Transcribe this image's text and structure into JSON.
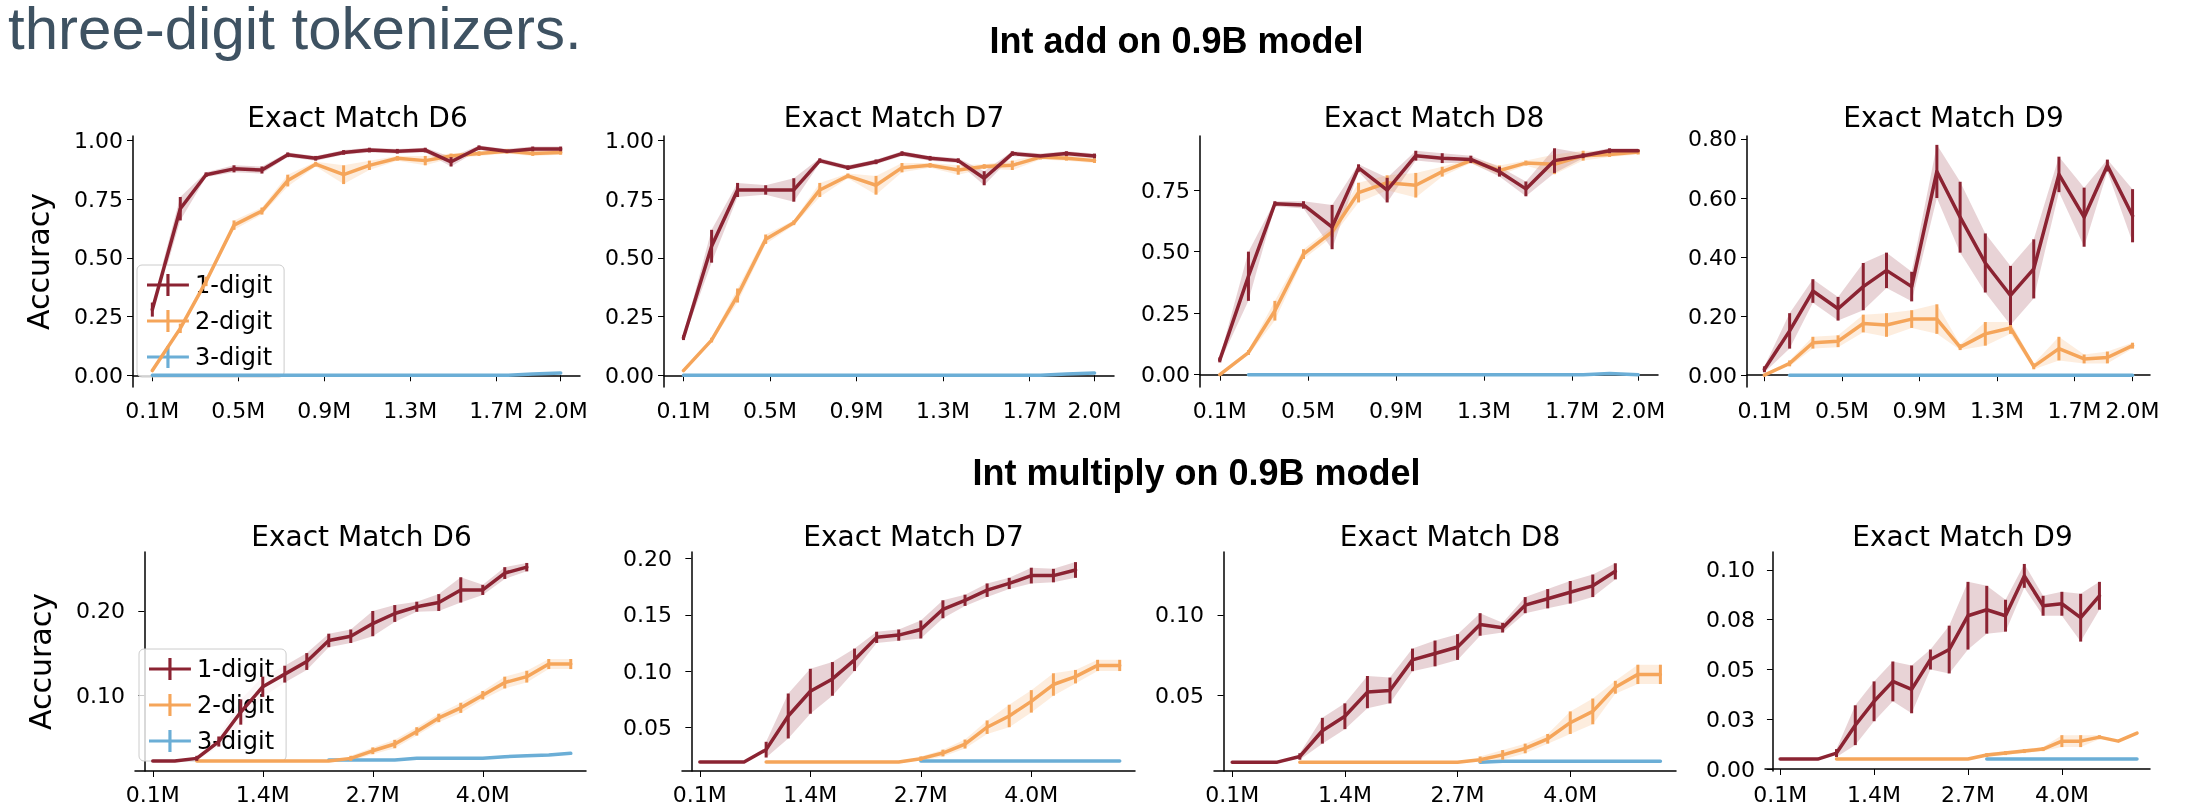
{
  "chart_data": [
    {
      "type": "line",
      "title": "Exact Match D6",
      "ylabel": "Accuracy",
      "annotations": [
        "three-digit tokenizers.",
        "Int add on 0.9B model"
      ],
      "legend": "bottom left",
      "x": [
        0.1,
        0.23,
        0.35,
        0.48,
        0.61,
        0.73,
        0.86,
        0.99,
        1.11,
        1.24,
        1.37,
        1.49,
        1.62,
        1.75,
        1.87,
        2.0
      ],
      "xlim": [
        0.01,
        2.09
      ],
      "xticks": [
        {
          "value": 0.1,
          "label": "0.1M"
        },
        {
          "value": 0.5,
          "label": "0.5M"
        },
        {
          "value": 0.9,
          "label": "0.9M"
        },
        {
          "value": 1.3,
          "label": "1.3M"
        },
        {
          "value": 1.7,
          "label": "1.7M"
        },
        {
          "value": 2.0,
          "label": "2.0M"
        }
      ],
      "ylim": [
        -0.05,
        1.02
      ],
      "yticks": [
        {
          "value": 0,
          "label": "0.00"
        },
        {
          "value": 0.25,
          "label": "0.25"
        },
        {
          "value": 0.5,
          "label": "0.50"
        },
        {
          "value": 0.75,
          "label": "0.75"
        },
        {
          "value": 1,
          "label": "1.00"
        }
      ],
      "series": [
        {
          "name": "1-digit",
          "color": "#8b2332",
          "values": [
            0.28,
            0.71,
            0.855,
            0.88,
            0.875,
            0.94,
            0.925,
            0.95,
            0.96,
            0.955,
            0.96,
            0.91,
            0.97,
            0.955,
            0.965,
            0.965
          ],
          "errors": [
            0.03,
            0.05,
            0.01,
            0.015,
            0.015,
            0.01,
            0.01,
            0.01,
            0.01,
            0.01,
            0.01,
            0.02,
            0.01,
            null,
            0.01,
            0.01
          ],
          "lower": [
            0.25,
            0.66,
            0.845,
            0.865,
            0.86,
            0.93,
            0.915,
            0.94,
            0.95,
            0.945,
            0.95,
            0.89,
            0.96,
            0.945,
            0.955,
            0.955
          ],
          "upper": [
            0.31,
            0.76,
            0.865,
            0.895,
            0.89,
            0.95,
            0.935,
            0.96,
            0.97,
            0.965,
            0.97,
            0.93,
            0.98,
            0.965,
            0.975,
            0.975
          ]
        },
        {
          "name": "2-digit",
          "color": "#f5a55a",
          "values": [
            0.02,
            0.2,
            0.4,
            0.64,
            0.7,
            0.83,
            0.9,
            0.855,
            0.895,
            0.925,
            0.915,
            0.935,
            0.945,
            0.955,
            0.945,
            0.95
          ],
          "errors": [
            null,
            0.02,
            0.02,
            0.02,
            0.015,
            0.025,
            0.01,
            0.04,
            0.02,
            0.01,
            0.02,
            0.01,
            0.01,
            0.01,
            0.01,
            0.01
          ],
          "lower": [
            null,
            null,
            null,
            0.62,
            0.685,
            0.805,
            0.89,
            0.815,
            0.875,
            0.915,
            0.895,
            0.925,
            0.935,
            0.945,
            0.935,
            0.94
          ],
          "upper": [
            null,
            null,
            null,
            0.66,
            0.715,
            0.855,
            0.91,
            0.895,
            0.915,
            0.935,
            0.935,
            0.945,
            0.955,
            0.965,
            0.955,
            0.96
          ]
        },
        {
          "name": "3-digit",
          "color": "#6baed6",
          "values": [
            0,
            0,
            0,
            0,
            0,
            0,
            0,
            0,
            0,
            0,
            0,
            0,
            0,
            0,
            0.005,
            0.01
          ]
        }
      ]
    },
    {
      "type": "line",
      "title": "Exact Match D7",
      "x": [
        0.1,
        0.23,
        0.35,
        0.48,
        0.61,
        0.73,
        0.86,
        0.99,
        1.11,
        1.24,
        1.37,
        1.49,
        1.62,
        1.75,
        1.87,
        2.0
      ],
      "xlim": [
        0.01,
        2.09
      ],
      "xticks": [
        {
          "value": 0.1,
          "label": "0.1M"
        },
        {
          "value": 0.5,
          "label": "0.5M"
        },
        {
          "value": 0.9,
          "label": "0.9M"
        },
        {
          "value": 1.3,
          "label": "1.3M"
        },
        {
          "value": 1.7,
          "label": "1.7M"
        },
        {
          "value": 2.0,
          "label": "2.0M"
        }
      ],
      "ylim": [
        -0.05,
        1.02
      ],
      "yticks": [
        {
          "value": 0,
          "label": "0.00"
        },
        {
          "value": 0.25,
          "label": "0.25"
        },
        {
          "value": 0.5,
          "label": "0.50"
        },
        {
          "value": 0.75,
          "label": "0.75"
        },
        {
          "value": 1,
          "label": "1.00"
        }
      ],
      "series": [
        {
          "color": "#8b2332",
          "values": [
            0.16,
            0.55,
            0.79,
            0.79,
            0.79,
            0.915,
            0.885,
            0.91,
            0.945,
            0.925,
            0.915,
            0.84,
            0.945,
            0.935,
            0.945,
            0.935
          ],
          "errors": [
            0.01,
            0.07,
            0.03,
            0.02,
            0.05,
            0.01,
            0.01,
            0.01,
            0.01,
            0.01,
            0.01,
            0.03,
            0.01,
            null,
            0.01,
            0.01
          ],
          "lower": [
            0.15,
            0.48,
            0.76,
            0.77,
            0.74,
            0.905,
            0.875,
            0.9,
            0.935,
            0.915,
            0.905,
            0.81,
            0.935,
            0.925,
            0.935,
            0.925
          ],
          "upper": [
            0.17,
            0.62,
            0.82,
            0.81,
            0.84,
            0.925,
            0.895,
            0.92,
            0.955,
            0.935,
            0.925,
            0.87,
            0.955,
            0.945,
            0.955,
            0.945
          ]
        },
        {
          "color": "#f5a55a",
          "values": [
            0.02,
            0.15,
            0.34,
            0.58,
            0.65,
            0.79,
            0.85,
            0.81,
            0.885,
            0.895,
            0.875,
            0.89,
            0.895,
            0.93,
            0.925,
            0.915
          ],
          "errors": [
            null,
            0.01,
            0.03,
            0.02,
            0.01,
            0.03,
            0.01,
            0.04,
            0.02,
            0.01,
            0.02,
            0.01,
            0.02,
            0.01,
            0.01,
            0.01
          ],
          "lower": [
            null,
            0.14,
            0.31,
            0.56,
            0.64,
            0.76,
            0.84,
            0.77,
            0.865,
            0.885,
            0.855,
            0.88,
            0.875,
            0.92,
            0.915,
            0.905
          ],
          "upper": [
            null,
            0.16,
            0.37,
            0.6,
            0.66,
            0.82,
            0.86,
            0.85,
            0.905,
            0.905,
            0.895,
            0.9,
            0.915,
            0.94,
            0.935,
            0.925
          ]
        },
        {
          "color": "#6baed6",
          "values": [
            0,
            0,
            0,
            0,
            0,
            0,
            0,
            0,
            0,
            0,
            0,
            0,
            0,
            0,
            0.005,
            0.01
          ]
        }
      ]
    },
    {
      "type": "line",
      "title": "Exact Match D8",
      "x": [
        0.1,
        0.23,
        0.35,
        0.48,
        0.61,
        0.73,
        0.86,
        0.99,
        1.11,
        1.24,
        1.37,
        1.49,
        1.62,
        1.75,
        1.87,
        2.0
      ],
      "xlim": [
        0.01,
        2.09
      ],
      "xticks": [
        {
          "value": 0.1,
          "label": "0.1M"
        },
        {
          "value": 0.5,
          "label": "0.5M"
        },
        {
          "value": 0.9,
          "label": "0.9M"
        },
        {
          "value": 1.3,
          "label": "1.3M"
        },
        {
          "value": 1.7,
          "label": "1.7M"
        },
        {
          "value": 2.0,
          "label": "2.0M"
        }
      ],
      "ylim": [
        -0.05,
        0.97
      ],
      "yticks": [
        {
          "value": 0,
          "label": "0.00"
        },
        {
          "value": 0.25,
          "label": "0.25"
        },
        {
          "value": 0.5,
          "label": "0.50"
        },
        {
          "value": 0.75,
          "label": "0.75"
        }
      ],
      "series": [
        {
          "color": "#8b2332",
          "values": [
            0.06,
            0.4,
            0.695,
            0.69,
            0.6,
            0.84,
            0.75,
            0.89,
            0.88,
            0.875,
            0.825,
            0.755,
            0.87,
            0.89,
            0.91,
            0.91
          ],
          "errors": [
            0.01,
            0.1,
            0.01,
            0.015,
            0.09,
            0.015,
            0.05,
            0.02,
            0.02,
            0.015,
            0.02,
            0.03,
            0.05,
            0.01,
            0.01,
            null
          ],
          "lower": [
            0.05,
            0.3,
            0.685,
            0.675,
            0.51,
            0.825,
            0.7,
            0.87,
            0.86,
            0.86,
            0.805,
            0.725,
            0.82,
            0.88,
            0.9,
            0.9
          ],
          "upper": [
            0.07,
            0.5,
            0.705,
            0.705,
            0.69,
            0.855,
            0.8,
            0.91,
            0.9,
            0.89,
            0.845,
            0.785,
            0.92,
            0.9,
            0.92,
            0.92
          ]
        },
        {
          "color": "#f5a55a",
          "values": [
            0,
            0.09,
            0.26,
            0.49,
            0.58,
            0.74,
            0.78,
            0.77,
            0.825,
            0.87,
            0.83,
            0.86,
            0.855,
            0.89,
            0.895,
            0.905
          ],
          "errors": [
            null,
            0.01,
            0.04,
            0.02,
            0.02,
            0.04,
            0.03,
            0.05,
            0.02,
            0.01,
            0.02,
            0.01,
            0.04,
            0.02,
            0.01,
            0.01
          ],
          "lower": [
            null,
            0.08,
            0.22,
            0.47,
            0.56,
            0.7,
            0.75,
            0.72,
            0.805,
            0.86,
            0.81,
            0.85,
            0.815,
            0.87,
            0.885,
            0.895
          ],
          "upper": [
            null,
            0.1,
            0.3,
            0.51,
            0.6,
            0.78,
            0.81,
            0.82,
            0.845,
            0.88,
            0.85,
            0.87,
            0.895,
            0.91,
            0.905,
            0.915
          ]
        },
        {
          "color": "#6baed6",
          "values": [
            null,
            0,
            0,
            0,
            0,
            0,
            0,
            0,
            0,
            0,
            0,
            0,
            0,
            0,
            0.005,
            0
          ]
        }
      ]
    },
    {
      "type": "line",
      "title": "Exact Match D9",
      "x": [
        0.1,
        0.23,
        0.35,
        0.48,
        0.61,
        0.73,
        0.86,
        0.99,
        1.11,
        1.24,
        1.37,
        1.49,
        1.62,
        1.75,
        1.87,
        2.0
      ],
      "xlim": [
        0.01,
        2.09
      ],
      "xticks": [
        {
          "value": 0.1,
          "label": "0.1M"
        },
        {
          "value": 0.5,
          "label": "0.5M"
        },
        {
          "value": 0.9,
          "label": "0.9M"
        },
        {
          "value": 1.3,
          "label": "1.3M"
        },
        {
          "value": 1.7,
          "label": "1.7M"
        },
        {
          "value": 2.0,
          "label": "2.0M"
        }
      ],
      "ylim": [
        -0.04,
        0.81
      ],
      "yticks": [
        {
          "value": 0,
          "label": "0.00"
        },
        {
          "value": 0.2,
          "label": "0.20"
        },
        {
          "value": 0.4,
          "label": "0.40"
        },
        {
          "value": 0.6,
          "label": "0.60"
        },
        {
          "value": 0.8,
          "label": "0.80"
        }
      ],
      "series": [
        {
          "color": "#8b2332",
          "values": [
            0.02,
            0.15,
            0.285,
            0.225,
            0.3,
            0.355,
            0.3,
            0.69,
            0.535,
            0.38,
            0.27,
            0.36,
            0.68,
            0.535,
            0.71,
            0.54
          ],
          "errors": [
            0.01,
            0.06,
            0.04,
            0.04,
            0.08,
            0.06,
            0.05,
            0.09,
            0.12,
            0.1,
            0.1,
            0.1,
            0.06,
            0.1,
            0.02,
            0.09
          ],
          "lower": [
            0.01,
            0.09,
            0.245,
            0.185,
            0.22,
            0.295,
            0.25,
            0.6,
            0.415,
            0.28,
            0.17,
            0.26,
            0.62,
            0.435,
            0.69,
            0.45
          ],
          "upper": [
            0.03,
            0.21,
            0.325,
            0.265,
            0.38,
            0.415,
            0.35,
            0.78,
            0.655,
            0.48,
            0.37,
            0.46,
            0.74,
            0.635,
            0.73,
            0.63
          ]
        },
        {
          "color": "#f5a55a",
          "values": [
            0,
            0.04,
            0.11,
            0.115,
            0.175,
            0.17,
            0.19,
            0.19,
            0.095,
            0.14,
            0.16,
            0.03,
            0.09,
            0.055,
            0.06,
            0.1
          ],
          "errors": [
            null,
            0.01,
            0.02,
            0.02,
            0.03,
            0.04,
            0.03,
            0.05,
            0.01,
            0.04,
            0.02,
            0.01,
            0.04,
            0.015,
            0.02,
            0.01
          ],
          "lower": [
            null,
            0.03,
            0.09,
            0.095,
            0.145,
            0.13,
            0.16,
            0.14,
            0.085,
            0.1,
            0.14,
            0.02,
            0.05,
            0.04,
            0.04,
            0.09
          ],
          "upper": [
            null,
            0.05,
            0.13,
            0.135,
            0.205,
            0.21,
            0.22,
            0.24,
            0.105,
            0.18,
            0.18,
            0.04,
            0.13,
            0.07,
            0.08,
            0.11
          ]
        },
        {
          "color": "#6baed6",
          "values": [
            null,
            0,
            0,
            0,
            0,
            0,
            0,
            0,
            0,
            0,
            0,
            0,
            0,
            0,
            0,
            0
          ]
        }
      ]
    },
    {
      "type": "line",
      "title": "Exact Match D6",
      "ylabel": "Accuracy",
      "annotations": [
        "Int multiply on 0.9B model"
      ],
      "legend": "bottom left",
      "x": [
        0.1,
        0.36,
        0.62,
        0.88,
        1.14,
        1.4,
        1.66,
        1.92,
        2.18,
        2.44,
        2.7,
        2.96,
        3.22,
        3.48,
        3.74,
        4.0,
        4.26,
        4.52,
        4.78,
        5.04
      ],
      "xlim": [
        -0.11,
        5.22
      ],
      "xticks": [
        {
          "value": 0.1,
          "label": "0.1M"
        },
        {
          "value": 1.4,
          "label": "1.4M"
        },
        {
          "value": 2.7,
          "label": "2.7M"
        },
        {
          "value": 4.0,
          "label": "4.0M"
        }
      ],
      "ylim": [
        0.01,
        0.27
      ],
      "yticks": [
        {
          "value": 0.1,
          "label": "0.10"
        },
        {
          "value": 0.2,
          "label": "0.20"
        }
      ],
      "series": [
        {
          "name": "1-digit",
          "color": "#8b2332",
          "values": [
            0.022,
            0.022,
            0.025,
            0.045,
            0.08,
            0.11,
            0.125,
            0.14,
            0.165,
            0.17,
            0.185,
            0.197,
            0.205,
            0.21,
            0.225,
            0.225,
            0.245,
            0.252,
            null,
            null
          ],
          "errors": [
            null,
            null,
            0.003,
            0.006,
            0.015,
            0.012,
            0.01,
            0.01,
            0.008,
            0.008,
            0.015,
            0.01,
            0.006,
            0.01,
            0.015,
            0.006,
            0.007,
            0.005,
            null,
            null
          ],
          "lower": [
            null,
            null,
            0.022,
            0.039,
            0.065,
            0.098,
            0.115,
            0.13,
            0.157,
            0.162,
            0.17,
            0.187,
            0.199,
            0.2,
            0.21,
            0.219,
            0.238,
            0.247,
            null,
            null
          ],
          "upper": [
            null,
            null,
            0.028,
            0.051,
            0.095,
            0.122,
            0.135,
            0.15,
            0.173,
            0.178,
            0.2,
            0.207,
            0.211,
            0.22,
            0.24,
            0.231,
            0.252,
            0.257,
            null,
            null
          ]
        },
        {
          "name": "2-digit",
          "color": "#f5a55a",
          "values": [
            null,
            null,
            0.022,
            0.022,
            0.022,
            0.022,
            0.022,
            0.022,
            0.022,
            0.025,
            0.034,
            0.042,
            0.057,
            0.073,
            0.085,
            0.1,
            0.115,
            0.122,
            0.137,
            0.137
          ],
          "errors": [
            null,
            null,
            null,
            null,
            null,
            null,
            null,
            null,
            null,
            0.003,
            0.004,
            0.005,
            0.005,
            0.005,
            0.006,
            0.005,
            0.007,
            0.007,
            0.006,
            0.006
          ],
          "lower": [
            null,
            null,
            null,
            null,
            null,
            null,
            null,
            null,
            null,
            0.022,
            0.03,
            0.037,
            0.052,
            0.068,
            0.079,
            0.095,
            0.108,
            0.115,
            0.131,
            0.131
          ],
          "upper": [
            null,
            null,
            null,
            null,
            null,
            null,
            null,
            null,
            null,
            0.028,
            0.038,
            0.047,
            0.062,
            0.078,
            0.091,
            0.105,
            0.122,
            0.129,
            0.143,
            0.143
          ]
        },
        {
          "name": "3-digit",
          "color": "#6baed6",
          "values": [
            null,
            null,
            null,
            null,
            null,
            null,
            null,
            null,
            0.023,
            0.023,
            0.023,
            0.023,
            0.025,
            0.025,
            0.025,
            0.025,
            0.027,
            0.028,
            0.029,
            0.031
          ]
        }
      ]
    },
    {
      "type": "line",
      "title": "Exact Match D7",
      "x": [
        0.1,
        0.36,
        0.62,
        0.88,
        1.14,
        1.4,
        1.66,
        1.92,
        2.18,
        2.44,
        2.7,
        2.96,
        3.22,
        3.48,
        3.74,
        4.0,
        4.26,
        4.52,
        4.78,
        5.04
      ],
      "xlim": [
        -0.11,
        5.22
      ],
      "xticks": [
        {
          "value": 0.1,
          "label": "0.1M"
        },
        {
          "value": 1.4,
          "label": "1.4M"
        },
        {
          "value": 2.7,
          "label": "2.7M"
        },
        {
          "value": 4.0,
          "label": "4.0M"
        }
      ],
      "ylim": [
        0.011,
        0.206
      ],
      "yticks": [
        {
          "value": 0.05,
          "label": "0.05"
        },
        {
          "value": 0.1,
          "label": "0.10"
        },
        {
          "value": 0.15,
          "label": "0.15"
        },
        {
          "value": 0.2,
          "label": "0.20"
        }
      ],
      "series": [
        {
          "color": "#8b2332",
          "values": [
            0.019,
            0.019,
            0.019,
            0.03,
            0.06,
            0.082,
            0.093,
            0.11,
            0.13,
            0.132,
            0.137,
            0.155,
            0.163,
            0.172,
            0.178,
            0.185,
            0.185,
            0.19,
            null,
            null
          ],
          "errors": [
            null,
            null,
            null,
            0.007,
            0.02,
            0.02,
            0.015,
            0.01,
            0.005,
            0.005,
            0.008,
            0.008,
            0.005,
            0.006,
            0.005,
            0.007,
            0.006,
            0.007,
            null,
            null
          ],
          "lower": [
            null,
            null,
            null,
            0.023,
            0.04,
            0.062,
            0.078,
            0.1,
            0.125,
            0.127,
            0.129,
            0.147,
            0.158,
            0.166,
            0.173,
            0.178,
            0.179,
            0.183,
            null,
            null
          ],
          "upper": [
            null,
            null,
            null,
            0.037,
            0.08,
            0.102,
            0.108,
            0.12,
            0.135,
            0.137,
            0.145,
            0.163,
            0.168,
            0.178,
            0.183,
            0.192,
            0.191,
            0.197,
            null,
            null
          ]
        },
        {
          "color": "#f5a55a",
          "values": [
            null,
            null,
            null,
            0.019,
            0.019,
            0.019,
            0.019,
            0.019,
            0.019,
            0.019,
            0.022,
            0.027,
            0.035,
            0.05,
            0.06,
            0.073,
            0.088,
            0.095,
            0.105,
            0.105
          ],
          "errors": [
            null,
            null,
            null,
            null,
            null,
            null,
            null,
            null,
            null,
            null,
            0.002,
            0.003,
            0.004,
            0.006,
            0.01,
            0.01,
            0.01,
            0.006,
            0.005,
            0.005
          ],
          "lower": [
            null,
            null,
            null,
            null,
            null,
            null,
            null,
            null,
            null,
            null,
            0.02,
            0.024,
            0.031,
            0.044,
            0.05,
            0.063,
            0.078,
            0.089,
            0.1,
            0.1
          ],
          "upper": [
            null,
            null,
            null,
            null,
            null,
            null,
            null,
            null,
            null,
            null,
            0.024,
            0.03,
            0.039,
            0.056,
            0.07,
            0.083,
            0.098,
            0.101,
            0.11,
            0.11
          ]
        },
        {
          "color": "#6baed6",
          "values": [
            null,
            null,
            null,
            null,
            null,
            null,
            null,
            null,
            null,
            null,
            0.02,
            0.02,
            0.02,
            0.02,
            0.02,
            0.02,
            0.02,
            0.02,
            0.02,
            0.02
          ]
        }
      ]
    },
    {
      "type": "line",
      "title": "Exact Match D8",
      "x": [
        0.1,
        0.36,
        0.62,
        0.88,
        1.14,
        1.4,
        1.66,
        1.92,
        2.18,
        2.44,
        2.7,
        2.96,
        3.22,
        3.48,
        3.74,
        4.0,
        4.26,
        4.52,
        4.78,
        5.04
      ],
      "xlim": [
        -0.11,
        5.22
      ],
      "xticks": [
        {
          "value": 0.1,
          "label": "0.1M"
        },
        {
          "value": 1.4,
          "label": "1.4M"
        },
        {
          "value": 2.7,
          "label": "2.7M"
        },
        {
          "value": 4.0,
          "label": "4.0M"
        }
      ],
      "ylim": [
        0.003,
        0.139
      ],
      "yticks": [
        {
          "value": 0.05,
          "label": "0.05"
        },
        {
          "value": 0.1,
          "label": "0.10"
        }
      ],
      "series": [
        {
          "color": "#8b2332",
          "values": [
            0.0085,
            0.0085,
            0.0085,
            0.012,
            0.028,
            0.037,
            0.052,
            0.053,
            0.072,
            0.076,
            0.08,
            0.094,
            0.092,
            0.106,
            0.11,
            0.114,
            0.118,
            0.127,
            null,
            null
          ],
          "errors": [
            null,
            null,
            null,
            0.002,
            0.008,
            0.008,
            0.01,
            0.008,
            0.007,
            0.008,
            0.008,
            0.007,
            0.003,
            0.005,
            0.006,
            0.007,
            0.007,
            0.005,
            null,
            null
          ],
          "lower": [
            null,
            null,
            null,
            0.01,
            0.02,
            0.029,
            0.042,
            0.045,
            0.065,
            0.068,
            0.072,
            0.087,
            0.089,
            0.101,
            0.104,
            0.107,
            0.111,
            0.122,
            null,
            null
          ],
          "upper": [
            null,
            null,
            null,
            0.014,
            0.036,
            0.045,
            0.062,
            0.061,
            0.079,
            0.084,
            0.088,
            0.101,
            0.095,
            0.111,
            0.116,
            0.121,
            0.125,
            0.132,
            null,
            null
          ]
        },
        {
          "color": "#f5a55a",
          "values": [
            null,
            null,
            null,
            0.0085,
            0.0085,
            0.0085,
            0.0085,
            0.0085,
            0.0085,
            0.0085,
            0.0085,
            0.01,
            0.013,
            0.017,
            0.023,
            0.033,
            0.04,
            0.055,
            0.063,
            0.063
          ],
          "errors": [
            null,
            null,
            null,
            null,
            null,
            null,
            null,
            null,
            null,
            null,
            null,
            0.002,
            0.003,
            0.003,
            0.003,
            0.007,
            0.008,
            0.004,
            0.006,
            0.006
          ],
          "lower": [
            null,
            null,
            null,
            null,
            null,
            null,
            null,
            null,
            null,
            null,
            null,
            0.008,
            0.01,
            0.014,
            0.02,
            0.026,
            0.032,
            0.051,
            0.057,
            0.057
          ],
          "upper": [
            null,
            null,
            null,
            null,
            null,
            null,
            null,
            null,
            null,
            null,
            null,
            0.012,
            0.016,
            0.02,
            0.026,
            0.04,
            0.048,
            0.059,
            0.069,
            0.069
          ]
        },
        {
          "color": "#6baed6",
          "values": [
            null,
            null,
            null,
            null,
            null,
            null,
            null,
            null,
            null,
            null,
            null,
            0.0085,
            0.009,
            0.009,
            0.009,
            0.009,
            0.009,
            0.009,
            0.009,
            0.009
          ]
        }
      ]
    },
    {
      "type": "line",
      "title": "Exact Match D9",
      "x": [
        0.1,
        0.36,
        0.62,
        0.88,
        1.14,
        1.4,
        1.66,
        1.92,
        2.18,
        2.44,
        2.7,
        2.96,
        3.22,
        3.48,
        3.74,
        4.0,
        4.26,
        4.52,
        4.78,
        5.04
      ],
      "xlim": [
        -0.11,
        5.22
      ],
      "xticks": [
        {
          "value": 0.1,
          "label": "0.1M"
        },
        {
          "value": 1.4,
          "label": "1.4M"
        },
        {
          "value": 2.7,
          "label": "2.7M"
        },
        {
          "value": 4.0,
          "label": "4.0M"
        }
      ],
      "ylim": [
        -0.001,
        0.109
      ],
      "yticks": [
        {
          "value": 0,
          "label": "0.00"
        },
        {
          "value": 0.025,
          "label": "0.03"
        },
        {
          "value": 0.05,
          "label": "0.05"
        },
        {
          "value": 0.075,
          "label": "0.08"
        },
        {
          "value": 0.1,
          "label": "0.10"
        }
      ],
      "series": [
        {
          "color": "#8b2332",
          "values": [
            0.005,
            0.005,
            0.005,
            0.008,
            0.022,
            0.034,
            0.044,
            0.04,
            0.055,
            0.06,
            0.077,
            0.08,
            0.077,
            0.097,
            0.082,
            0.083,
            0.076,
            0.087,
            null,
            null
          ],
          "errors": [
            null,
            null,
            null,
            0.002,
            0.01,
            0.01,
            0.01,
            0.012,
            0.005,
            0.012,
            0.017,
            0.012,
            0.008,
            0.006,
            0.005,
            0.006,
            0.012,
            0.007,
            null,
            null
          ],
          "lower": [
            null,
            null,
            null,
            0.006,
            0.012,
            0.024,
            0.034,
            0.028,
            0.05,
            0.048,
            0.06,
            0.068,
            0.069,
            0.091,
            0.077,
            0.077,
            0.064,
            0.08,
            null,
            null
          ],
          "upper": [
            null,
            null,
            null,
            0.01,
            0.032,
            0.044,
            0.054,
            0.052,
            0.06,
            0.072,
            0.094,
            0.092,
            0.085,
            0.103,
            0.087,
            0.089,
            0.088,
            0.094,
            null,
            null
          ]
        },
        {
          "color": "#f5a55a",
          "values": [
            null,
            null,
            null,
            0.005,
            0.005,
            0.005,
            0.005,
            0.005,
            0.005,
            0.005,
            0.005,
            0.007,
            0.008,
            0.009,
            0.01,
            0.014,
            0.014,
            0.016,
            0.014,
            0.018
          ],
          "errors": [
            null,
            null,
            null,
            null,
            null,
            null,
            null,
            null,
            null,
            null,
            null,
            0.001,
            0.001,
            0.001,
            0.001,
            0.003,
            0.003,
            0.001,
            null,
            null
          ],
          "lower": [
            null,
            null,
            null,
            null,
            null,
            null,
            null,
            null,
            null,
            null,
            null,
            0.006,
            0.007,
            0.008,
            0.009,
            0.011,
            0.011,
            0.015,
            null,
            null
          ],
          "upper": [
            null,
            null,
            null,
            null,
            null,
            null,
            null,
            null,
            null,
            null,
            null,
            0.008,
            0.009,
            0.01,
            0.011,
            0.017,
            0.017,
            0.017,
            null,
            null
          ]
        },
        {
          "color": "#6baed6",
          "values": [
            null,
            null,
            null,
            null,
            null,
            null,
            null,
            null,
            null,
            null,
            null,
            0.005,
            0.005,
            0.005,
            0.005,
            0.005,
            0.005,
            0.005,
            0.005,
            0.005
          ]
        }
      ]
    }
  ]
}
